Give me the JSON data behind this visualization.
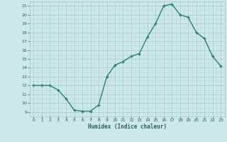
{
  "x": [
    0,
    1,
    2,
    3,
    4,
    5,
    6,
    7,
    8,
    9,
    10,
    11,
    12,
    13,
    14,
    15,
    16,
    17,
    18,
    19,
    20,
    21,
    22,
    23
  ],
  "y": [
    12,
    12,
    12,
    11.5,
    10.5,
    9.2,
    9.1,
    9.1,
    9.8,
    13.0,
    14.3,
    14.7,
    15.3,
    15.6,
    17.5,
    19.0,
    21.0,
    21.2,
    20.0,
    19.7,
    18.0,
    17.3,
    15.3,
    14.2
  ],
  "xlabel": "Humidex (Indice chaleur)",
  "xlim": [
    -0.5,
    23.5
  ],
  "ylim": [
    9,
    21.5
  ],
  "yticks": [
    9,
    10,
    11,
    12,
    13,
    14,
    15,
    16,
    17,
    18,
    19,
    20,
    21
  ],
  "xticks": [
    0,
    1,
    2,
    3,
    4,
    5,
    6,
    7,
    8,
    9,
    10,
    11,
    12,
    13,
    14,
    15,
    16,
    17,
    18,
    19,
    20,
    21,
    22,
    23
  ],
  "line_color": "#2e7d6f",
  "marker_color": "#2e7d6f",
  "bg_color": "#cce8e8",
  "grid_color_minor": "#b8d8d8",
  "grid_color_major": "#a8c8c8",
  "tick_label_color": "#2d5f5f",
  "xlabel_color": "#2d5f5f"
}
